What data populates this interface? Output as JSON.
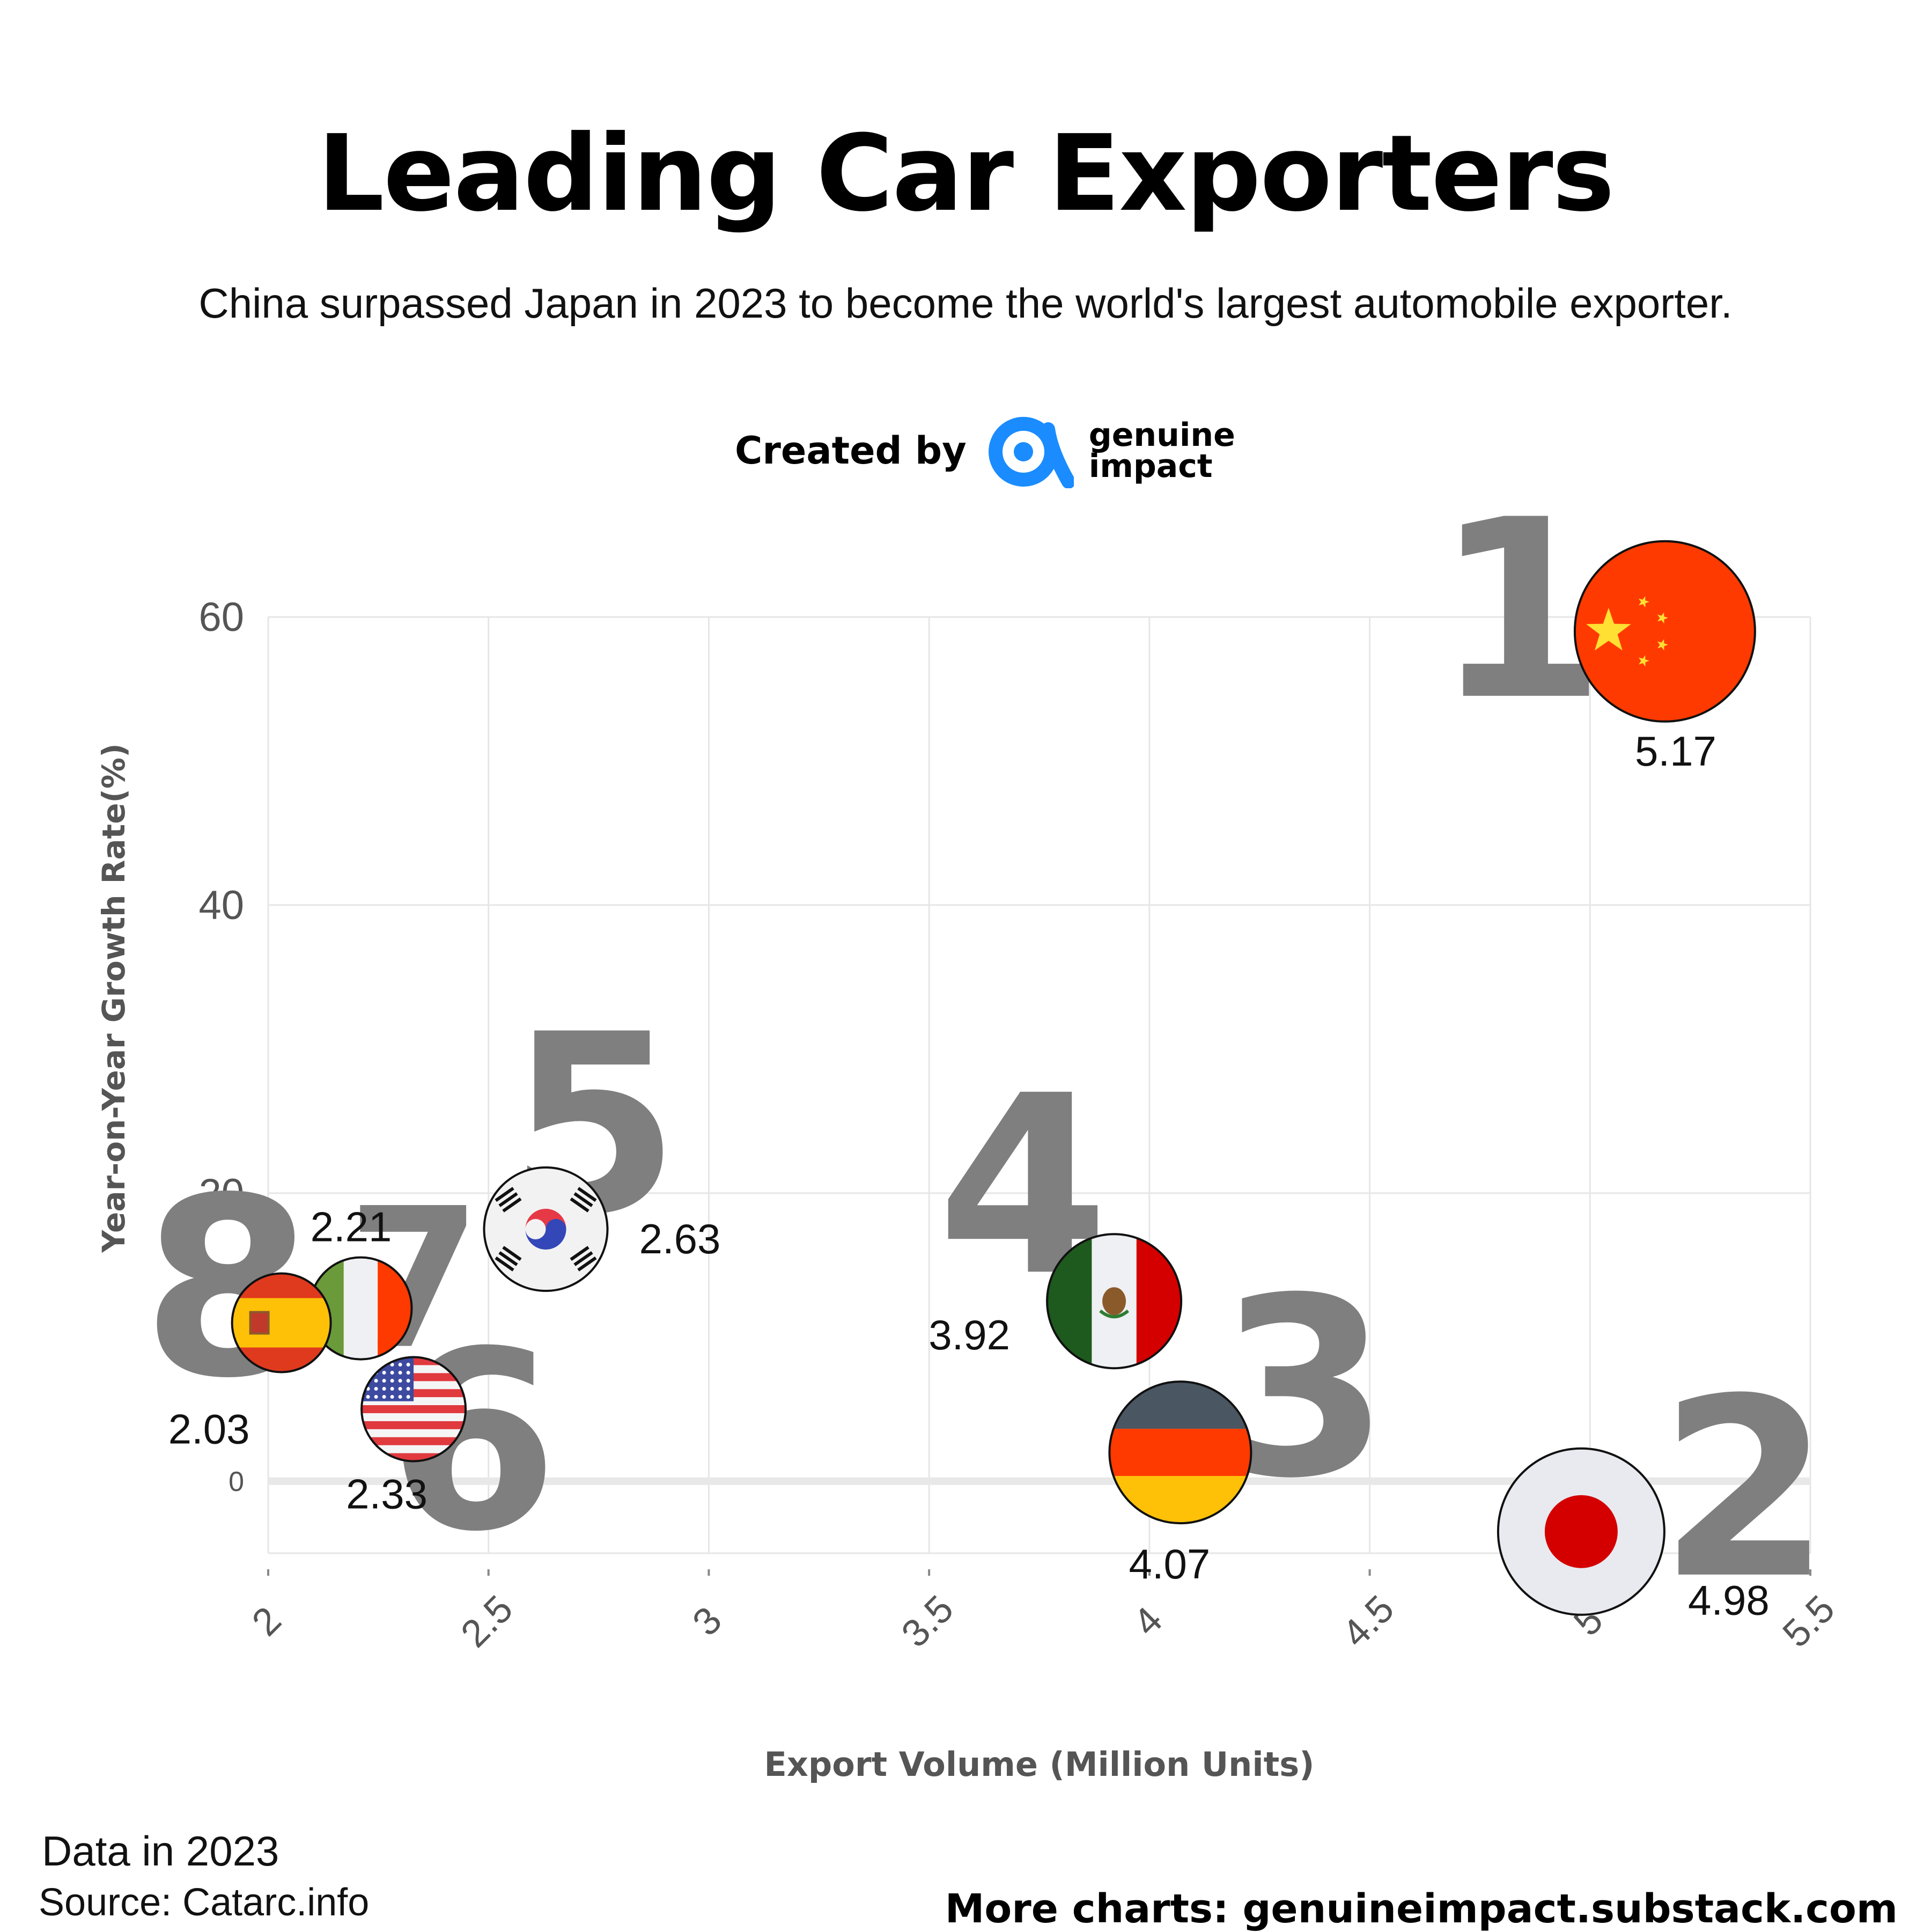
{
  "header": {
    "title": "Leading Car Exporters",
    "subtitle": "China surpassed Japan in 2023 to become the world's largest automobile exporter."
  },
  "credit": {
    "created_by": "Created by",
    "brand_line1": "genuine",
    "brand_line2": "impact",
    "brand_color": "#1a8cff"
  },
  "footer": {
    "data_year": "Data in 2023",
    "source": "Source:  Catarc.info",
    "more": "More charts: genuineimpact.substack.com"
  },
  "chart_data": {
    "type": "scatter",
    "title": "Leading Car Exporters",
    "xlabel": "Export Volume (Million Units)",
    "ylabel": "Year-on-Year Growth Rate(%)",
    "xlim": [
      2,
      5.5
    ],
    "ylim": [
      -5,
      60
    ],
    "x_ticks": [
      "2",
      "2.5",
      "3",
      "3.5",
      "4",
      "4.5",
      "5",
      "5.5"
    ],
    "x_tick_values": [
      2,
      2.5,
      3,
      3.5,
      4,
      4.5,
      5,
      5.5
    ],
    "y_ticks": [
      "0",
      "20",
      "40",
      "60"
    ],
    "y_tick_values": [
      0,
      20,
      40,
      60
    ],
    "grid": true,
    "rank_color": "#7f7f7f",
    "points": [
      {
        "rank": "1",
        "country": "China",
        "flag": "china-flag",
        "x": 5.17,
        "y": 59,
        "label": "5.17"
      },
      {
        "rank": "2",
        "country": "Japan",
        "flag": "japan-flag",
        "x": 4.98,
        "y": -3.5,
        "label": "4.98"
      },
      {
        "rank": "3",
        "country": "Germany",
        "flag": "germany-flag",
        "x": 4.07,
        "y": 2,
        "label": "4.07"
      },
      {
        "rank": "4",
        "country": "Mexico",
        "flag": "mexico-flag",
        "x": 3.92,
        "y": 12.5,
        "label": "3.92"
      },
      {
        "rank": "5",
        "country": "South Korea",
        "flag": "south-korea-flag",
        "x": 2.63,
        "y": 17.5,
        "label": "2.63"
      },
      {
        "rank": "6",
        "country": "United States",
        "flag": "usa-flag",
        "x": 2.33,
        "y": 5,
        "label": "2.33"
      },
      {
        "rank": "7",
        "country": "Italy",
        "flag": "italy-flag",
        "x": 2.21,
        "y": 12,
        "label": "2.21"
      },
      {
        "rank": "8",
        "country": "Spain",
        "flag": "spain-flag",
        "x": 2.03,
        "y": 11,
        "label": "2.03"
      }
    ]
  }
}
